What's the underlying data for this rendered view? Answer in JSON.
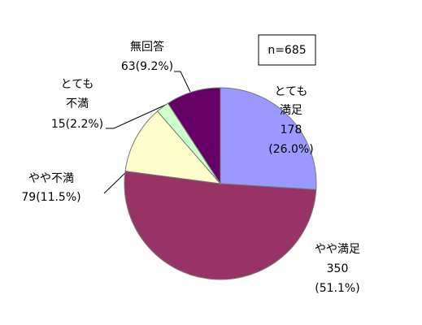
{
  "chart_data": {
    "type": "pie",
    "annotation": "n=685",
    "categories": [
      [
        "とても",
        "満足"
      ],
      [
        "やや満足"
      ],
      [
        "やや不満"
      ],
      [
        "とても",
        "不満"
      ],
      [
        "無回答"
      ]
    ],
    "values": [
      178,
      350,
      79,
      15,
      63
    ],
    "percent_labels": [
      "(26.0%)",
      "(51.1%)",
      "(11.5%)",
      "(2.2%)",
      "(9.2%)"
    ],
    "colors": [
      "#9999ff",
      "#993366",
      "#ffffcc",
      "#ccffcc",
      "#660066"
    ]
  }
}
